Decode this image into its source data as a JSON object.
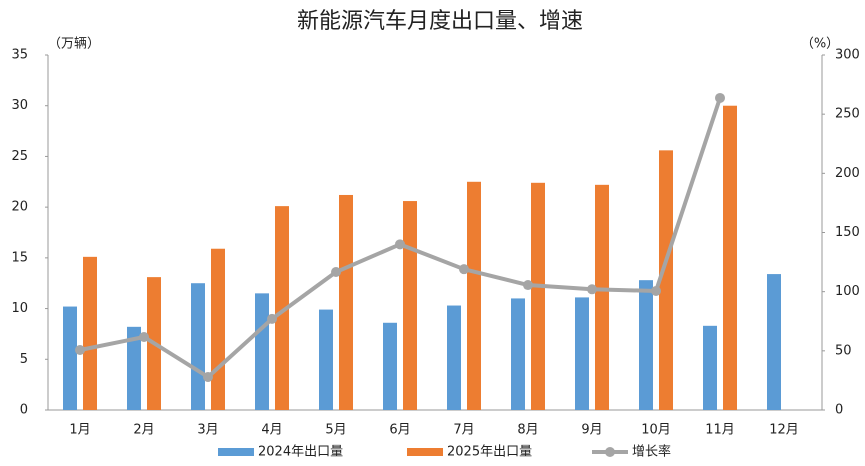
{
  "chart_data": {
    "type": "bar-line",
    "title": "新能源汽车月度出口量、增速",
    "y_label": "（万辆）",
    "y2_label": "（%）",
    "categories": [
      "1月",
      "2月",
      "3月",
      "4月",
      "5月",
      "6月",
      "7月",
      "8月",
      "9月",
      "10月",
      "11月",
      "12月"
    ],
    "series": [
      {
        "name": "2024年出口量",
        "type": "bar",
        "color": "#5b9bd5",
        "values": [
          10.2,
          8.2,
          12.5,
          11.5,
          9.9,
          8.6,
          10.3,
          11.0,
          11.1,
          12.8,
          8.3,
          13.4
        ]
      },
      {
        "name": "2025年出口量",
        "type": "bar",
        "color": "#ed7d31",
        "values": [
          15.1,
          13.1,
          15.9,
          20.1,
          21.2,
          20.6,
          22.5,
          22.4,
          22.2,
          25.6,
          30.0,
          null
        ]
      },
      {
        "name": "增长率",
        "type": "line",
        "axis": "y2",
        "color": "#a5a5a5",
        "values": [
          50.7,
          61.7,
          27.9,
          77,
          116.6,
          140,
          119,
          105.6,
          102,
          100.6,
          263.7,
          null
        ]
      }
    ],
    "ylim": [
      0,
      35
    ],
    "yticks": [
      0,
      5,
      10,
      15,
      20,
      25,
      30,
      35
    ],
    "y2lim": [
      0,
      300
    ],
    "y2ticks": [
      0,
      50,
      100,
      150,
      200,
      250,
      300
    ],
    "grid": false,
    "legend": "bottom"
  }
}
